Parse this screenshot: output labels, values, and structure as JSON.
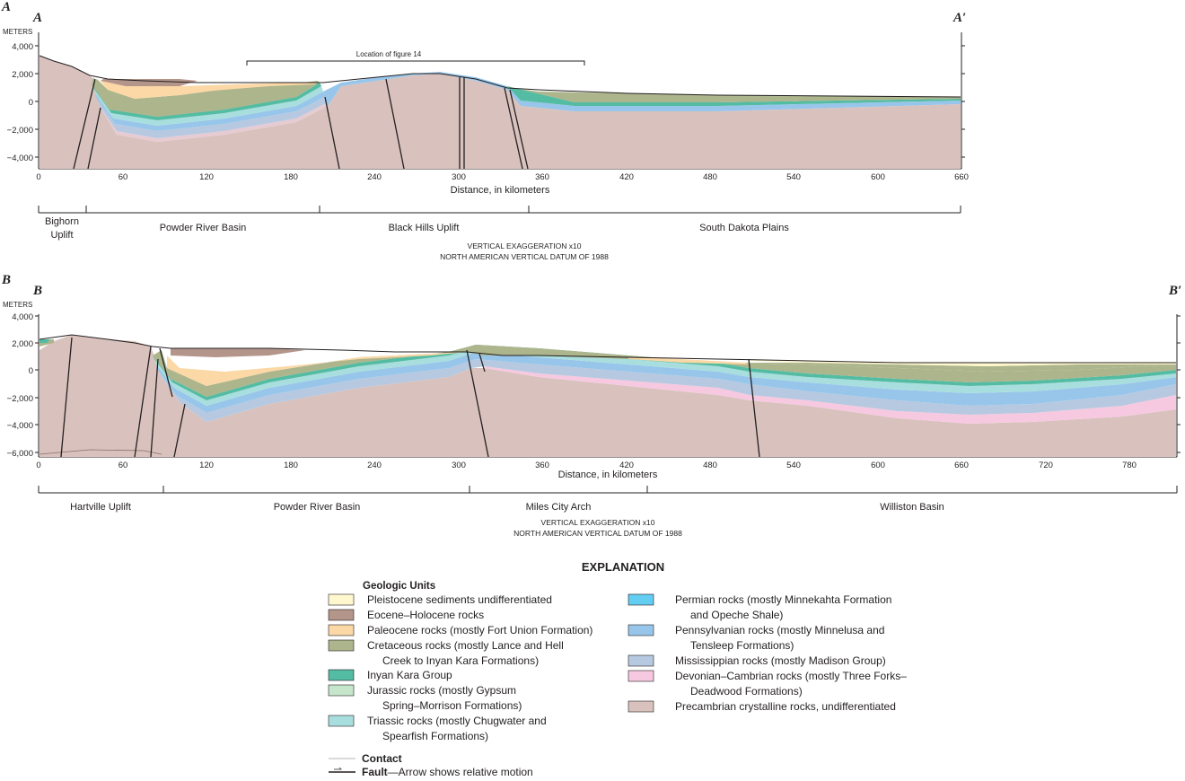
{
  "panel_a": {
    "letter": "A",
    "start_label": "A",
    "end_label": "A′",
    "units_label": "METERS",
    "y_ticks": [
      "4,000",
      "2,000",
      "0",
      "−2,000",
      "−4,000"
    ],
    "x_ticks": [
      "0",
      "60",
      "120",
      "180",
      "240",
      "300",
      "360",
      "420",
      "480",
      "540",
      "600",
      "660"
    ],
    "x_axis_title": "Distance, in kilometers",
    "figure_note": "Location of figure 14",
    "regions": [
      {
        "line1": "Bighorn",
        "line2": "Uplift"
      },
      {
        "line1": "Powder River Basin",
        "line2": ""
      },
      {
        "line1": "Black Hills Uplift",
        "line2": ""
      },
      {
        "line1": "South Dakota Plains",
        "line2": ""
      }
    ],
    "vertical_exaggeration": "VERTICAL EXAGGERATION x10",
    "datum": "NORTH AMERICAN VERTICAL DATUM OF 1988"
  },
  "panel_b": {
    "letter": "B",
    "start_label": "B",
    "end_label": "B′",
    "units_label": "METERS",
    "y_ticks": [
      "4,000",
      "2,000",
      "0",
      "−2,000",
      "−4,000",
      "−6,000"
    ],
    "x_ticks": [
      "0",
      "60",
      "120",
      "180",
      "240",
      "300",
      "360",
      "420",
      "480",
      "540",
      "600",
      "660",
      "720",
      "780"
    ],
    "x_axis_title": "Distance, in kilometers",
    "regions": [
      {
        "line1": "Hartville Uplift"
      },
      {
        "line1": "Powder River Basin"
      },
      {
        "line1": "Miles City Arch"
      },
      {
        "line1": "Williston Basin"
      }
    ],
    "vertical_exaggeration": "VERTICAL EXAGGERATION x10",
    "datum": "NORTH AMERICAN VERTICAL DATUM OF 1988"
  },
  "explanation": {
    "title": "EXPLANATION",
    "units_heading": "Geologic Units",
    "units_left": [
      {
        "color": "#fff8cf",
        "line1": "Pleistocene sediments undifferentiated",
        "line2": ""
      },
      {
        "color": "#b3958a",
        "line1": "Eocene–Holocene rocks",
        "line2": ""
      },
      {
        "color": "#fbd8a6",
        "line1": "Paleocene rocks (mostly Fort Union Formation)",
        "line2": ""
      },
      {
        "color": "#adb58c",
        "line1": "Cretaceous rocks (mostly Lance and Hell",
        "line2": "Creek to Inyan Kara Formations)"
      },
      {
        "color": "#54bca2",
        "line1": "Inyan Kara Group",
        "line2": ""
      },
      {
        "color": "#c6e6cb",
        "line1": "Jurassic rocks (mostly Gypsum",
        "line2": "Spring–Morrison Formations)"
      },
      {
        "color": "#a9dede",
        "line1": "Triassic rocks (mostly Chugwater and",
        "line2": "Spearfish Formations)"
      }
    ],
    "units_right": [
      {
        "color": "#63cdf2",
        "line1": "Permian rocks (mostly Minnekahta Formation",
        "line2": "and Opeche Shale)"
      },
      {
        "color": "#98c6ea",
        "line1": "Pennsylvanian rocks (mostly Minnelusa and",
        "line2": "Tensleep Formations)"
      },
      {
        "color": "#b7c9e0",
        "line1": "Mississippian rocks (mostly Madison Group)",
        "line2": ""
      },
      {
        "color": "#f6c9e0",
        "line1": "Devonian–Cambrian rocks (mostly Three Forks–",
        "line2": "Deadwood Formations)"
      },
      {
        "color": "#d9c2bd",
        "line1": "Precambrian crystalline rocks, undifferentiated",
        "line2": ""
      }
    ],
    "contact_label": "Contact",
    "fault_label": "Fault",
    "fault_desc": "—Arrow shows relative motion"
  }
}
